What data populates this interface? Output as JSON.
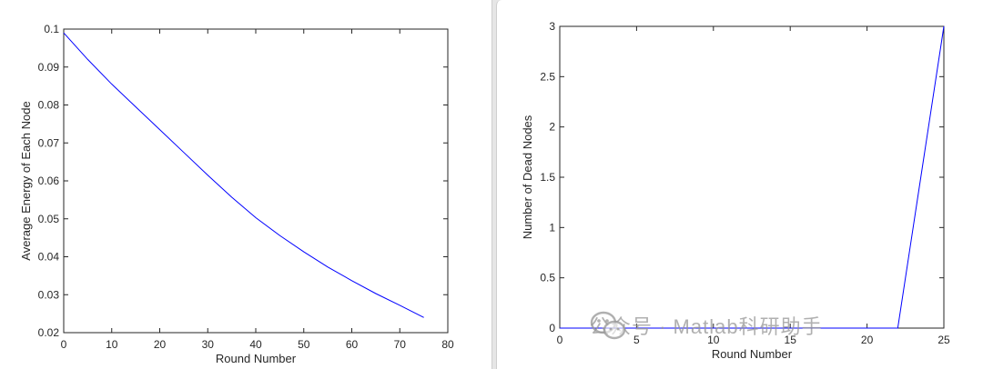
{
  "chart_data": [
    {
      "type": "line",
      "xlabel": "Round Number",
      "ylabel": "Average Energy of Each Node",
      "xlim": [
        0,
        80
      ],
      "ylim": [
        0.02,
        0.1
      ],
      "xticks": [
        0,
        10,
        20,
        30,
        40,
        50,
        60,
        70,
        80
      ],
      "yticks": [
        0.02,
        0.03,
        0.04,
        0.05,
        0.06,
        0.07,
        0.08,
        0.09,
        0.1
      ],
      "xtick_labels": [
        "0",
        "10",
        "20",
        "30",
        "40",
        "50",
        "60",
        "70",
        "80"
      ],
      "ytick_labels": [
        "0.02",
        "0.03",
        "0.04",
        "0.05",
        "0.06",
        "0.07",
        "0.08",
        "0.09",
        "0.1"
      ],
      "series": [
        {
          "color": "#0000ff",
          "x": [
            0,
            5,
            10,
            15,
            20,
            25,
            30,
            35,
            40,
            45,
            50,
            55,
            60,
            65,
            70,
            75
          ],
          "y": [
            0.099,
            0.092,
            0.0855,
            0.0795,
            0.0735,
            0.0675,
            0.0615,
            0.0557,
            0.0503,
            0.0456,
            0.0413,
            0.0373,
            0.0337,
            0.0303,
            0.0272,
            0.024
          ]
        }
      ],
      "grid": false
    },
    {
      "type": "line",
      "xlabel": "Round Number",
      "ylabel": "Number of Dead Nodes",
      "xlim": [
        0,
        25
      ],
      "ylim": [
        0,
        3
      ],
      "xticks": [
        0,
        5,
        10,
        15,
        20,
        25
      ],
      "yticks": [
        0,
        0.5,
        1,
        1.5,
        2,
        2.5,
        3
      ],
      "xtick_labels": [
        "0",
        "5",
        "10",
        "15",
        "20",
        "25"
      ],
      "ytick_labels": [
        "0",
        "0.5",
        "1",
        "1.5",
        "2",
        "2.5",
        "3"
      ],
      "series": [
        {
          "color": "#0000ff",
          "x": [
            0,
            22,
            25
          ],
          "y": [
            0,
            0,
            3
          ]
        }
      ],
      "grid": false
    }
  ],
  "watermark": {
    "text": "公众号 · Matlab科研助手",
    "icon": "wechat-icon"
  }
}
